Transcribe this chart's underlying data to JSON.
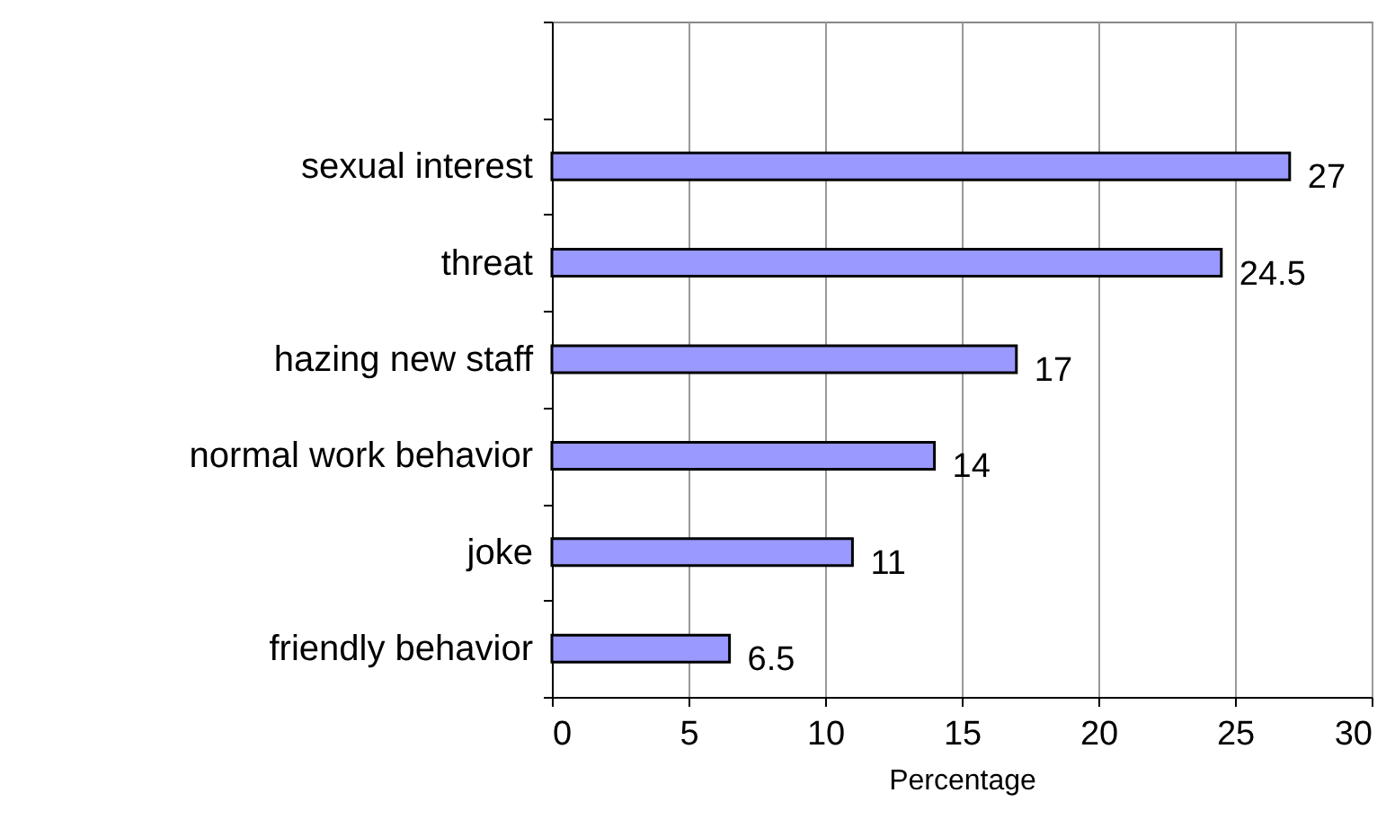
{
  "chart_data": {
    "type": "bar",
    "orientation": "horizontal",
    "categories": [
      null,
      "sexual interest",
      "threat",
      "hazing new staff",
      "normal work behavior",
      "joke",
      "friendly behavior"
    ],
    "values": [
      null,
      27,
      24.5,
      17,
      14,
      11,
      6.5
    ],
    "color": "#9999ff",
    "xlabel": "Percentage",
    "xlim": [
      0,
      30
    ],
    "xticks": [
      0,
      5,
      10,
      15,
      20,
      25,
      30
    ],
    "grid": "x",
    "data_labels": true
  }
}
